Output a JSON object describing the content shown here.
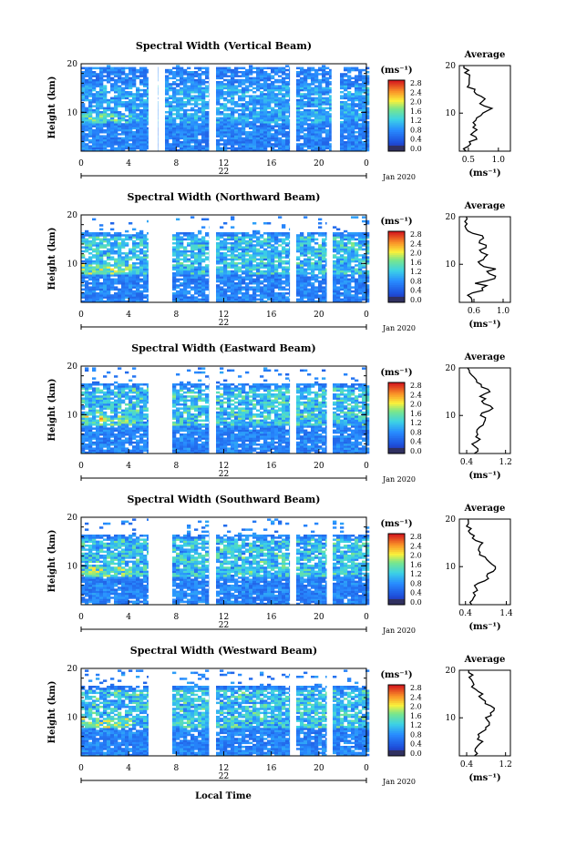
{
  "figure": {
    "x_axis_title": "Local Time",
    "date_label": "Jan 2020",
    "colorbar_unit": "(ms⁻¹)",
    "colorbar_ticks": [
      "0.0",
      "0.4",
      "0.8",
      "1.2",
      "1.6",
      "2.0",
      "2.4",
      "2.8"
    ],
    "ylabel": "Height (km)",
    "avg_title": "Average",
    "avg_xlabel": "(ms⁻¹)",
    "colors": {
      "high": "#d7191c",
      "mid": "#ffff33",
      "low": "#2b5bdb",
      "bar_bottom": "#303060"
    }
  },
  "chart_data": [
    {
      "type": "heatmap",
      "title": "Spectral Width (Vertical Beam)",
      "xticks": [
        "0",
        "4",
        "8",
        "12",
        "16",
        "20",
        "0"
      ],
      "day_label": "22",
      "yticks": [
        "20",
        "10"
      ],
      "ylim": [
        2,
        20
      ],
      "gaps_hours": [
        5.9,
        6.7,
        11.0,
        17.8,
        21.3
      ],
      "noise_level": 0.25,
      "profile": {
        "xticks": [
          "0.5",
          "1.0"
        ],
        "xlim": [
          0.35,
          1.2
        ],
        "heights": [
          2,
          3,
          4,
          5,
          6,
          7,
          8,
          9,
          10,
          11,
          12,
          13,
          14,
          15,
          16,
          17,
          18,
          19,
          20
        ],
        "values": [
          0.45,
          0.5,
          0.55,
          0.62,
          0.55,
          0.6,
          0.55,
          0.62,
          0.75,
          0.9,
          0.7,
          0.8,
          0.65,
          0.6,
          0.5,
          0.55,
          0.5,
          0.5,
          0.45
        ]
      }
    },
    {
      "type": "heatmap",
      "title": "Spectral Width (Northward Beam)",
      "xticks": [
        "0",
        "4",
        "8",
        "12",
        "16",
        "20",
        "0"
      ],
      "day_label": "22",
      "yticks": [
        "20",
        "10"
      ],
      "ylim": [
        2,
        20
      ],
      "gaps_hours": [
        5.9,
        6.6,
        7.3,
        11.0,
        17.8,
        20.9
      ],
      "noise_level": 0.45,
      "profile": {
        "xticks": [
          "0.6",
          "1.0"
        ],
        "xlim": [
          0.4,
          1.1
        ],
        "heights": [
          2,
          3,
          4,
          5,
          6,
          7,
          8,
          9,
          10,
          11,
          12,
          13,
          14,
          15,
          16,
          17,
          18,
          19,
          20
        ],
        "values": [
          0.55,
          0.55,
          0.6,
          0.75,
          0.65,
          0.85,
          0.8,
          0.9,
          0.7,
          0.75,
          0.8,
          0.7,
          0.75,
          0.65,
          0.7,
          0.55,
          0.45,
          0.5,
          0.5
        ]
      }
    },
    {
      "type": "heatmap",
      "title": "Spectral Width (Eastward Beam)",
      "xticks": [
        "0",
        "4",
        "8",
        "12",
        "16",
        "20",
        "0"
      ],
      "day_label": "22",
      "yticks": [
        "20",
        "10"
      ],
      "ylim": [
        2,
        20
      ],
      "gaps_hours": [
        5.9,
        6.6,
        7.3,
        11.0,
        17.8,
        20.9
      ],
      "noise_level": 0.5,
      "profile": {
        "xticks": [
          "0.4",
          "1.2"
        ],
        "xlim": [
          0.25,
          1.3
        ],
        "heights": [
          2,
          3,
          4,
          5,
          6,
          7,
          8,
          9,
          10,
          11,
          12,
          13,
          14,
          15,
          16,
          17,
          18,
          19,
          20
        ],
        "values": [
          0.55,
          0.6,
          0.55,
          0.7,
          0.6,
          0.65,
          0.7,
          0.8,
          0.65,
          0.9,
          0.85,
          0.75,
          0.7,
          0.85,
          0.7,
          0.6,
          0.55,
          0.5,
          0.45
        ]
      }
    },
    {
      "type": "heatmap",
      "title": "Spectral Width (Southward Beam)",
      "xticks": [
        "0",
        "4",
        "8",
        "12",
        "16",
        "20",
        "0"
      ],
      "day_label": "22",
      "yticks": [
        "20",
        "10"
      ],
      "ylim": [
        2,
        20
      ],
      "gaps_hours": [
        5.9,
        6.6,
        7.3,
        11.0,
        17.8,
        20.9
      ],
      "noise_level": 0.5,
      "profile": {
        "xticks": [
          "0.4",
          "1.4"
        ],
        "xlim": [
          0.25,
          1.5
        ],
        "heights": [
          2,
          3,
          4,
          5,
          6,
          7,
          8,
          9,
          10,
          11,
          12,
          13,
          14,
          15,
          16,
          17,
          18,
          19,
          20
        ],
        "values": [
          0.55,
          0.6,
          0.6,
          0.7,
          0.65,
          0.85,
          0.95,
          1.05,
          1.1,
          1.0,
          0.85,
          0.75,
          0.7,
          0.8,
          0.6,
          0.55,
          0.5,
          0.45,
          0.45
        ]
      }
    },
    {
      "type": "heatmap",
      "title": "Spectral Width (Westward Beam)",
      "xticks": [
        "0",
        "4",
        "8",
        "12",
        "16",
        "20",
        "0"
      ],
      "day_label": "22",
      "yticks": [
        "20",
        "10"
      ],
      "ylim": [
        2,
        20
      ],
      "gaps_hours": [
        5.9,
        6.6,
        7.3,
        11.0,
        17.8,
        20.9
      ],
      "noise_level": 0.5,
      "profile": {
        "xticks": [
          "0.4",
          "1.2"
        ],
        "xlim": [
          0.25,
          1.3
        ],
        "heights": [
          2,
          3,
          4,
          5,
          6,
          7,
          8,
          9,
          10,
          11,
          12,
          13,
          14,
          15,
          16,
          17,
          18,
          19,
          20
        ],
        "values": [
          0.55,
          0.6,
          0.6,
          0.7,
          0.65,
          0.7,
          0.8,
          0.9,
          0.8,
          0.9,
          0.95,
          0.8,
          0.75,
          0.7,
          0.6,
          0.55,
          0.5,
          0.5,
          0.45
        ]
      }
    }
  ]
}
